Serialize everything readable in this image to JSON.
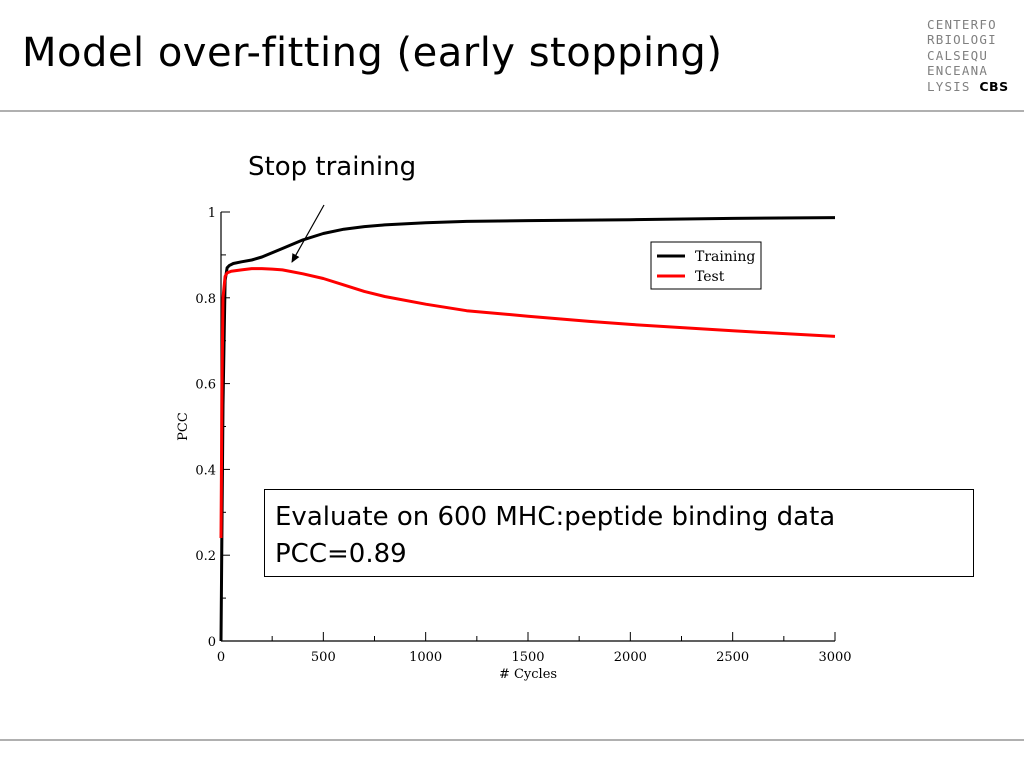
{
  "slide": {
    "title": "Model over-fitting (early stopping)",
    "annotation": "Stop training",
    "info_lines": [
      "Evaluate on 600 MHC:peptide binding data",
      "PCC=0.89"
    ]
  },
  "logo": {
    "rows": [
      "CENTERFO",
      "RBIOLOGI",
      "CALSEQU",
      "ENCEANA",
      "LYSIS"
    ],
    "brand": "CBS",
    "color": "#808080"
  },
  "chart_data": {
    "type": "line",
    "xlabel": "# Cycles",
    "ylabel": "PCC",
    "xlim": [
      0,
      3000
    ],
    "ylim": [
      0,
      1
    ],
    "x_ticks": [
      0,
      500,
      1000,
      1500,
      2000,
      2500,
      3000
    ],
    "y_ticks": [
      0,
      0.2,
      0.4,
      0.6,
      0.8,
      1
    ],
    "y_tick_labels": [
      "0",
      "0.2",
      "0.4",
      "0.6",
      "0.8",
      "1"
    ],
    "grid": false,
    "legend_position": "top-right",
    "series": [
      {
        "name": "Training",
        "color": "#000000",
        "x": [
          0,
          10,
          20,
          30,
          40,
          60,
          100,
          150,
          200,
          300,
          400,
          500,
          600,
          700,
          800,
          1000,
          1200,
          1500,
          2000,
          2500,
          3000
        ],
        "y": [
          0.0,
          0.55,
          0.84,
          0.87,
          0.875,
          0.88,
          0.884,
          0.888,
          0.895,
          0.915,
          0.935,
          0.95,
          0.96,
          0.966,
          0.97,
          0.975,
          0.978,
          0.98,
          0.982,
          0.985,
          0.987
        ]
      },
      {
        "name": "Test",
        "color": "#ff0000",
        "x": [
          0,
          5,
          10,
          20,
          30,
          50,
          100,
          150,
          200,
          250,
          300,
          400,
          500,
          600,
          700,
          800,
          1000,
          1200,
          1500,
          1800,
          2000,
          2500,
          3000
        ],
        "y": [
          0.24,
          0.6,
          0.8,
          0.85,
          0.858,
          0.862,
          0.865,
          0.868,
          0.868,
          0.867,
          0.865,
          0.856,
          0.845,
          0.83,
          0.815,
          0.803,
          0.785,
          0.77,
          0.757,
          0.745,
          0.738,
          0.723,
          0.71
        ]
      }
    ]
  }
}
